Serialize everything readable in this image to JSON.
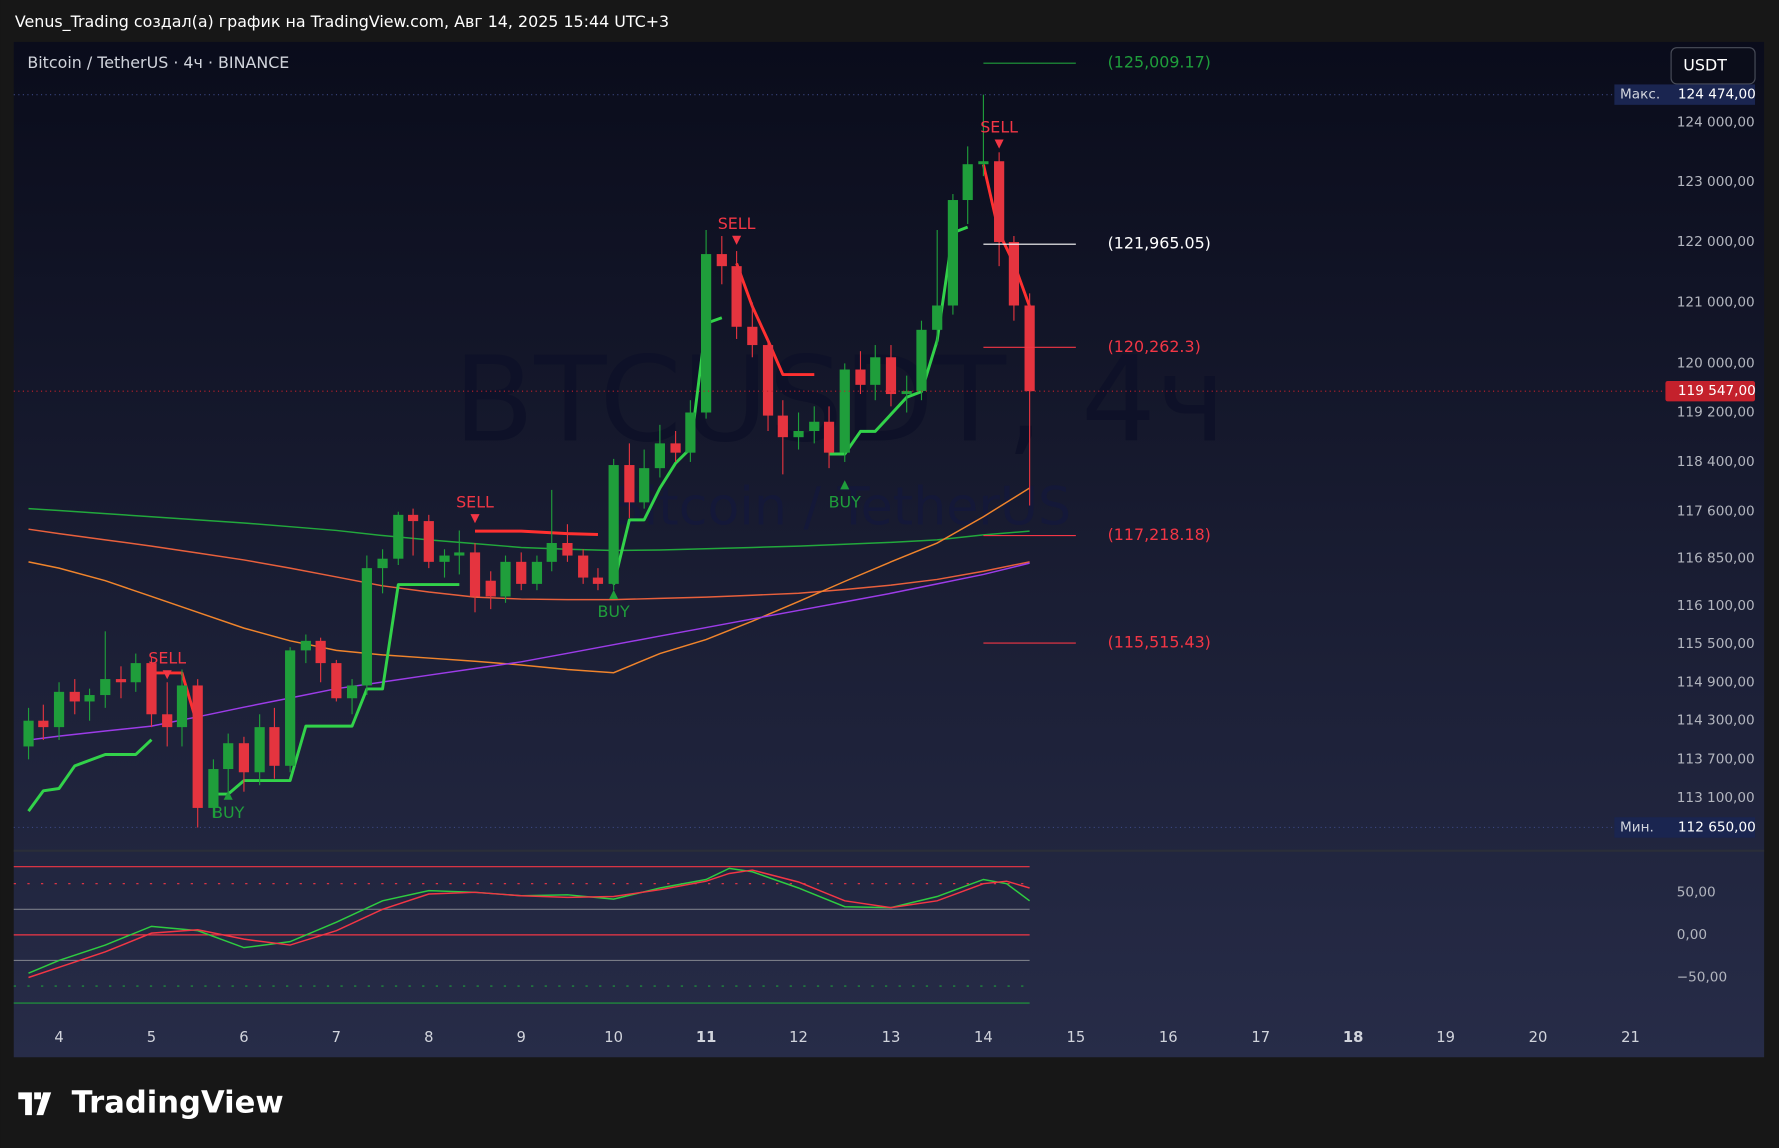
{
  "header": "Venus_Trading создал(а) график на TradingView.com, Авг 14, 2025 15:44 UTC+3",
  "footer_logo": "TradingView",
  "chart_data": [
    {
      "type": "candlestick",
      "symbol": "Bitcoin / TetherUS · 4ч · BINANCE",
      "currency_button": "USDT",
      "watermark": "BTCUSDT, 4ч",
      "watermark_subtitle": "Bitcoin / TetherUS",
      "x": [
        3.67,
        3.83,
        4,
        4.17,
        4.33,
        4.5,
        4.67,
        4.83,
        5,
        5.17,
        5.33,
        5.5,
        5.67,
        5.83,
        6,
        6.17,
        6.33,
        6.5,
        6.67,
        6.83,
        7,
        7.17,
        7.33,
        7.5,
        7.67,
        7.83,
        8,
        8.17,
        8.33,
        8.5,
        8.67,
        8.83,
        9,
        9.17,
        9.33,
        9.5,
        9.67,
        9.83,
        10,
        10.17,
        10.33,
        10.5,
        10.67,
        10.83,
        11,
        11.17,
        11.33,
        11.5,
        11.67,
        11.83,
        12,
        12.17,
        12.33,
        12.5,
        12.67,
        12.83,
        13,
        13.17,
        13.33,
        13.5,
        13.67,
        13.83,
        14,
        14.17,
        14.33,
        14.5
      ],
      "open": [
        113900,
        114300,
        114200,
        114750,
        114600,
        114700,
        114950,
        114900,
        115200,
        114400,
        114200,
        114850,
        112950,
        113550,
        113950,
        113500,
        114200,
        113600,
        115400,
        115550,
        115200,
        114650,
        114850,
        116700,
        116850,
        117550,
        117450,
        116800,
        116900,
        116950,
        116500,
        116250,
        116800,
        116450,
        116800,
        117100,
        116900,
        116550,
        116450,
        118350,
        117750,
        118300,
        118700,
        118550,
        119200,
        121800,
        121600,
        120600,
        120300,
        119150,
        118800,
        118900,
        119050,
        118550,
        119900,
        119650,
        120100,
        119500,
        119550,
        120550,
        120950,
        122700,
        123300,
        123350,
        122000,
        120950
      ],
      "high": [
        114500,
        114550,
        114900,
        114950,
        114800,
        115700,
        115150,
        115350,
        115300,
        114900,
        115100,
        114950,
        113700,
        114100,
        114050,
        114400,
        114500,
        115450,
        115650,
        115600,
        115250,
        114950,
        116900,
        117000,
        117600,
        117650,
        117550,
        117000,
        117300,
        117100,
        116650,
        116900,
        116950,
        116900,
        117950,
        117400,
        117000,
        116700,
        118450,
        118700,
        118600,
        119000,
        118900,
        119400,
        122200,
        122100,
        121850,
        121000,
        120400,
        119400,
        119200,
        119300,
        119300,
        120000,
        120200,
        120300,
        120300,
        119800,
        120700,
        122200,
        122800,
        123600,
        124474,
        123500,
        122100,
        121150
      ],
      "low": [
        113700,
        114000,
        114000,
        114400,
        114300,
        114500,
        114650,
        114750,
        114200,
        113900,
        113900,
        112650,
        112800,
        113100,
        113200,
        113300,
        113400,
        113500,
        115200,
        114900,
        114600,
        114400,
        114700,
        116300,
        116750,
        116900,
        116700,
        116550,
        116600,
        116000,
        116050,
        116150,
        116350,
        116350,
        116650,
        116800,
        116450,
        116350,
        116350,
        117500,
        117650,
        118150,
        118400,
        118400,
        119100,
        121300,
        120400,
        120100,
        118900,
        118200,
        118600,
        118700,
        118300,
        118400,
        119500,
        119400,
        119300,
        119200,
        119400,
        120300,
        120800,
        122300,
        123100,
        121600,
        120700,
        117700
      ],
      "close": [
        114300,
        114200,
        114750,
        114600,
        114700,
        114950,
        114900,
        115200,
        114400,
        114200,
        114850,
        112950,
        113550,
        113950,
        113500,
        114200,
        113600,
        115400,
        115550,
        115200,
        114650,
        114850,
        116700,
        116850,
        117550,
        117450,
        116800,
        116900,
        116950,
        116250,
        116250,
        116800,
        116450,
        116800,
        117100,
        116900,
        116550,
        116450,
        118350,
        117750,
        118300,
        118700,
        118550,
        119200,
        121800,
        121600,
        120600,
        120300,
        119150,
        118800,
        118900,
        119050,
        118550,
        119900,
        119650,
        120100,
        119500,
        119550,
        120550,
        120950,
        122700,
        123300,
        123350,
        122000,
        120950,
        119547
      ],
      "up_color": "#1f9e3b",
      "down_color": "#e5343f",
      "xlim": [
        3.51,
        21.28
      ],
      "xticks": [
        4,
        5,
        6,
        7,
        8,
        9,
        10,
        11,
        12,
        13,
        14,
        15,
        16,
        17,
        18,
        19,
        20,
        21
      ],
      "xticks_bold": [
        11,
        18
      ],
      "ylim": [
        112310,
        125370
      ],
      "log_scale": true,
      "yticks": [
        {
          "value": 124000,
          "label": "124 000,00"
        },
        {
          "value": 123000,
          "label": "123 000,00"
        },
        {
          "value": 122000,
          "label": "122 000,00"
        },
        {
          "value": 121000,
          "label": "121 000,00"
        },
        {
          "value": 120000,
          "label": "120 000,00"
        },
        {
          "value": 119200,
          "label": "119 200,00"
        },
        {
          "value": 118400,
          "label": "118 400,00"
        },
        {
          "value": 117600,
          "label": "117 600,00"
        },
        {
          "value": 116850,
          "label": "116 850,00"
        },
        {
          "value": 116100,
          "label": "116 100,00"
        },
        {
          "value": 115500,
          "label": "115 500,00"
        },
        {
          "value": 114900,
          "label": "114 900,00"
        },
        {
          "value": 114300,
          "label": "114 300,00"
        },
        {
          "value": 113700,
          "label": "113 700,00"
        },
        {
          "value": 113100,
          "label": "113 100,00"
        }
      ],
      "overlays": {
        "x": [
          3.67,
          4,
          4.5,
          5,
          5.5,
          6,
          6.5,
          7,
          7.5,
          8,
          8.5,
          9,
          9.5,
          10,
          10.5,
          11,
          11.5,
          12,
          12.5,
          13,
          13.5,
          14,
          14.5
        ],
        "lines": [
          {
            "color": "#22a83c",
            "values": [
              117650,
              117620,
              117570,
              117520,
              117470,
              117420,
              117360,
              117300,
              117220,
              117150,
              117090,
              117030,
              117000,
              116980,
              116990,
              117010,
              117030,
              117050,
              117080,
              117110,
              117150,
              117230,
              117290
            ]
          },
          {
            "color": "#e8603c",
            "values": [
              117320,
              117250,
              117150,
              117050,
              116940,
              116830,
              116700,
              116560,
              116420,
              116320,
              116240,
              116210,
              116200,
              116200,
              116220,
              116240,
              116270,
              116300,
              116360,
              116430,
              116520,
              116650,
              116800
            ]
          },
          {
            "color": "#f0842c",
            "values": [
              116800,
              116700,
              116500,
              116250,
              116000,
              115750,
              115550,
              115400,
              115330,
              115280,
              115230,
              115170,
              115100,
              115050,
              115350,
              115570,
              115860,
              116170,
              116490,
              116800,
              117100,
              117520,
              117980
            ]
          },
          {
            "color": "#9c3ce8",
            "values": [
              114000,
              114060,
              114140,
              114215,
              114360,
              114510,
              114655,
              114800,
              114905,
              115010,
              115115,
              115220,
              115355,
              115490,
              115625,
              115760,
              115895,
              116030,
              116165,
              116300,
              116450,
              116600,
              116780
            ]
          }
        ]
      },
      "supertrend": [
        {
          "color": "#32d24a",
          "x": [
            3.67,
            3.83,
            4,
            4.17,
            4.5,
            4.83,
            5
          ],
          "values": [
            112901,
            113215,
            113250,
            113600,
            113775,
            113775,
            114004
          ]
        },
        {
          "color": "#ff3030",
          "x": [
            5,
            5.17,
            5.33,
            5.5
          ],
          "values": [
            115046,
            115046,
            115046,
            114215
          ]
        },
        {
          "color": "#32d24a",
          "x": [
            5.67,
            5.83,
            6,
            6.5,
            6.67,
            7,
            7.17,
            7.33,
            7.5,
            7.67,
            8,
            8.33
          ],
          "values": [
            113163,
            113163,
            113372,
            113372,
            114215,
            114215,
            114215,
            114796,
            114796,
            116440,
            116440,
            116440
          ]
        },
        {
          "color": "#ff3030",
          "x": [
            8.5,
            9,
            9.5,
            9.83
          ],
          "values": [
            117289,
            117289,
            117250,
            117235
          ]
        },
        {
          "color": "#32d24a",
          "x": [
            10,
            10.17,
            10.33,
            10.5,
            10.67,
            10.83,
            11,
            11.17
          ],
          "values": [
            116440,
            117470,
            117470,
            117979,
            118381,
            118619,
            120655,
            120748
          ]
        },
        {
          "color": "#ff3030",
          "x": [
            11.33,
            11.5,
            11.67,
            11.83,
            12,
            12.17
          ],
          "values": [
            121646,
            120934,
            120374,
            119817,
            119817,
            119817
          ]
        },
        {
          "color": "#32d24a",
          "x": [
            12.33,
            12.5,
            12.67,
            12.83,
            13.17,
            13.33,
            13.5,
            13.67,
            13.83
          ],
          "values": [
            118528,
            118528,
            118894,
            118894,
            119448,
            119540,
            120374,
            122154,
            122249
          ]
        },
        {
          "color": "#ff3030",
          "x": [
            14,
            14.17,
            14.33,
            14.5
          ],
          "values": [
            123293,
            122154,
            121646,
            120934
          ]
        }
      ],
      "signals": [
        {
          "label": "SELL",
          "x": 5.17,
          "price": 115000,
          "position": "above",
          "color": "#f23645"
        },
        {
          "label": "BUY",
          "x": 5.83,
          "price": 113163,
          "position": "below",
          "color": "#1f9e3b"
        },
        {
          "label": "SELL",
          "x": 8.5,
          "price": 117470,
          "position": "above",
          "color": "#f23645"
        },
        {
          "label": "BUY",
          "x": 10,
          "price": 116300,
          "position": "below",
          "color": "#1f9e3b"
        },
        {
          "label": "SELL",
          "x": 11.33,
          "price": 122010,
          "position": "above",
          "color": "#f23645"
        },
        {
          "label": "BUY",
          "x": 12.5,
          "price": 118050,
          "position": "below",
          "color": "#1f9e3b"
        },
        {
          "label": "SELL",
          "x": 14.17,
          "price": 123620,
          "position": "above",
          "color": "#f23645"
        }
      ],
      "levels": [
        {
          "value": 125009.17,
          "label": "(125,009.17)",
          "color": "#1f9e3b",
          "x": [
            14,
            15
          ]
        },
        {
          "value": 121965.05,
          "label": "(121,965.05)",
          "color": "#ffffff",
          "x": [
            14,
            15
          ]
        },
        {
          "value": 120262.3,
          "label": "(120,262.3)",
          "color": "#f23645",
          "x": [
            14,
            15
          ]
        },
        {
          "value": 117218.18,
          "label": "(117,218.18)",
          "color": "#f23645",
          "x": [
            14,
            15
          ]
        },
        {
          "value": 115515.43,
          "label": "(115,515.43)",
          "color": "#f23645",
          "x": [
            14,
            15
          ]
        }
      ],
      "price_markers": [
        {
          "title": "Макс.",
          "value": 124474,
          "label": "124 474,00"
        },
        {
          "title": "Мин.",
          "value": 112650,
          "label": "112 650,00"
        }
      ],
      "last_price": {
        "value": 119547,
        "label": "119 547,00",
        "color": "#c4212c"
      }
    },
    {
      "type": "line",
      "xlim": [
        3.51,
        21.28
      ],
      "ylim": [
        -101,
        96
      ],
      "yticks": [
        {
          "value": 50,
          "label": "50,00"
        },
        {
          "value": 0,
          "label": "0,00"
        },
        {
          "value": -50,
          "label": "−50,00"
        }
      ],
      "levels": [
        {
          "value": 80,
          "color": "#f23645"
        },
        {
          "value": 60,
          "color": "#f23645",
          "dotted": true
        },
        {
          "value": 30,
          "color": "#787b86"
        },
        {
          "value": 0,
          "color": "#f23645"
        },
        {
          "value": -30,
          "color": "#787b86"
        },
        {
          "value": -60,
          "color": "#1f9e3b",
          "dotted": true
        },
        {
          "value": -80,
          "color": "#1f9e3b"
        }
      ],
      "series": [
        {
          "color": "#2ecc40",
          "x": [
            3.67,
            4,
            4.5,
            5,
            5.5,
            6,
            6.5,
            7,
            7.5,
            8,
            8.5,
            9,
            9.5,
            10,
            10.5,
            11,
            11.25,
            11.5,
            12,
            12.5,
            13,
            13.5,
            14,
            14.25,
            14.5
          ],
          "values": [
            -45,
            -30,
            -12,
            10,
            5,
            -15,
            -8,
            15,
            40,
            52,
            50,
            46,
            47,
            42,
            55,
            65,
            78,
            74,
            55,
            33,
            32,
            45,
            65,
            60,
            40
          ]
        },
        {
          "color": "#f23645",
          "x": [
            3.67,
            4,
            4.5,
            5,
            5.5,
            6,
            6.5,
            7,
            7.5,
            8,
            8.5,
            9,
            9.5,
            10,
            10.5,
            11,
            11.25,
            11.5,
            12,
            12.5,
            13,
            13.5,
            14,
            14.25,
            14.5
          ],
          "values": [
            -50,
            -38,
            -20,
            2,
            6,
            -5,
            -12,
            5,
            30,
            48,
            50,
            46,
            44,
            45,
            53,
            63,
            72,
            76,
            62,
            40,
            32,
            40,
            60,
            63,
            55
          ]
        }
      ]
    }
  ]
}
